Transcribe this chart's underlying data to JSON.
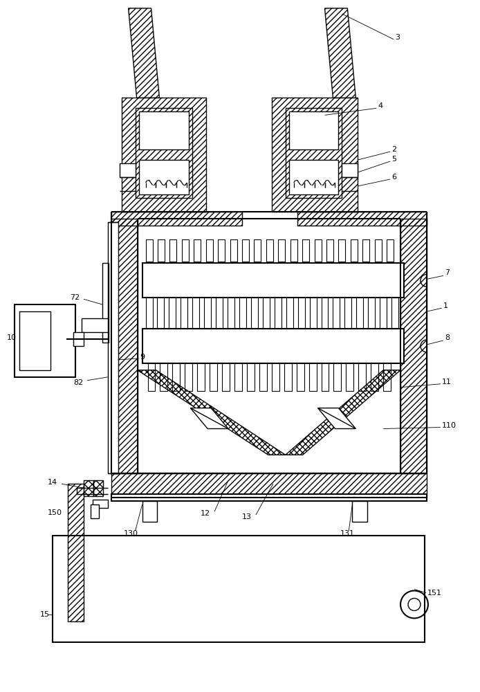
{
  "bg_color": "#ffffff",
  "line_color": "#000000",
  "fig_width": 6.94,
  "fig_height": 10.0,
  "dpi": 100
}
